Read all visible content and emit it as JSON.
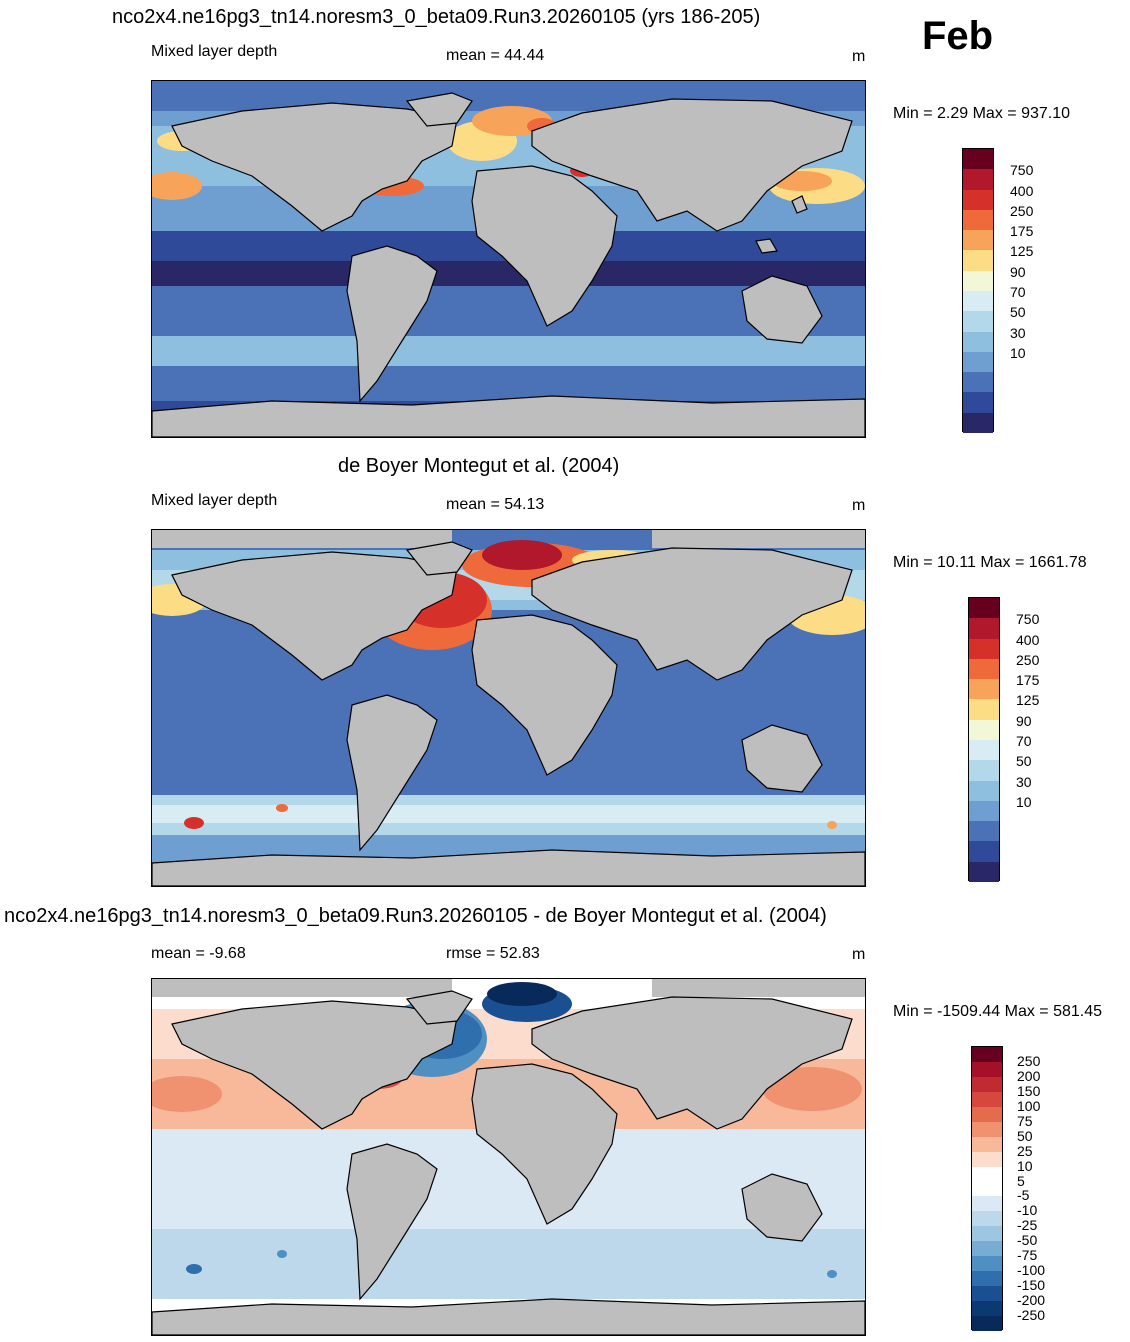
{
  "month": "Feb",
  "panels": [
    {
      "title": "nco2x4.ne16pg3_tn14.noresm3_0_beta09.Run3.20260105 (yrs 186-205)",
      "left_label": "Mixed layer depth",
      "center_label": "mean =  44.44",
      "right_label": "m",
      "minmax": "Min =   2.29 Max = 937.10",
      "colorbar_labels": [
        "750",
        "400",
        "250",
        "175",
        "125",
        "90",
        "70",
        "50",
        "30",
        "10"
      ]
    },
    {
      "title": "de Boyer Montegut et al. (2004)",
      "left_label": "Mixed layer depth",
      "center_label": "mean =  54.13",
      "right_label": "m",
      "minmax": "Min =  10.11 Max = 1661.78",
      "colorbar_labels": [
        "750",
        "400",
        "250",
        "175",
        "125",
        "90",
        "70",
        "50",
        "30",
        "10"
      ]
    },
    {
      "title": "nco2x4.ne16pg3_tn14.noresm3_0_beta09.Run3.20260105 - de Boyer Montegut et al. (2004)",
      "left_label": "mean =  -9.68",
      "center_label": "rmse =  52.83",
      "right_label": "m",
      "minmax": "Min = -1509.44 Max = 581.45",
      "colorbar_labels": [
        "250",
        "200",
        "150",
        "100",
        "75",
        "50",
        "25",
        "10",
        "5",
        "-5",
        "-10",
        "-25",
        "-50",
        "-75",
        "-100",
        "-150",
        "-200",
        "-250"
      ]
    }
  ],
  "colors": {
    "land": "#bebebe",
    "seq_scale": [
      "#67001f",
      "#b2182b",
      "#d6302a",
      "#ef6a3a",
      "#f7a35a",
      "#fddc86",
      "#f2f7d8",
      "#d8edf3",
      "#b3d8ea",
      "#8fbfdf",
      "#6f9fd0",
      "#4b72b6",
      "#2f4a98",
      "#2a2766"
    ],
    "div_scale": [
      "#67001f",
      "#a50f28",
      "#c22a32",
      "#d6473e",
      "#e36c4d",
      "#f09270",
      "#f7b99a",
      "#fcdccc",
      "#ffffff",
      "#ffffff",
      "#dbe9f4",
      "#bdd7eb",
      "#9dc6e1",
      "#77acd3",
      "#4f8fc2",
      "#2f6fad",
      "#1a4f91",
      "#0b3a73",
      "#082a5a"
    ]
  }
}
